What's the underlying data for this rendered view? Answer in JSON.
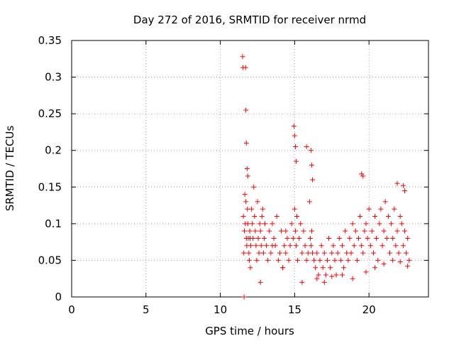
{
  "chart_data": {
    "type": "scatter",
    "title": "Day 272 of 2016, SRMTID for receiver nrmd",
    "xlabel": "GPS time / hours",
    "ylabel": "SRMTID / TECUs",
    "xlim": [
      0,
      24
    ],
    "ylim": [
      0,
      0.35
    ],
    "xticks": [
      0,
      5,
      10,
      15,
      20
    ],
    "xtick_labels": [
      "0",
      "5",
      "10",
      "15",
      "20"
    ],
    "yticks": [
      0,
      0.05,
      0.1,
      0.15,
      0.2,
      0.25,
      0.3,
      0.35
    ],
    "ytick_labels": [
      "0",
      "0.05",
      "0.1",
      "0.15",
      "0.2",
      "0.25",
      "0.3",
      "0.35"
    ],
    "grid": true,
    "marker": "+",
    "color": "#ff0000",
    "series": [
      {
        "x": [
          11.55,
          11.58,
          11.62,
          11.65,
          11.68,
          11.72,
          11.75,
          11.78,
          11.82,
          11.85,
          11.88,
          11.92,
          11.95,
          11.98,
          12.02,
          12.05,
          12.1,
          12.15,
          12.2,
          12.25,
          12.3,
          12.35,
          12.4,
          12.45,
          12.5,
          12.55,
          12.6,
          12.65,
          12.7,
          12.75,
          12.8,
          12.85,
          12.9,
          12.95,
          13.0,
          13.1,
          13.2,
          13.3,
          13.4,
          13.5,
          13.6,
          13.7,
          13.8,
          13.9,
          14.0,
          14.1,
          14.2,
          14.3,
          14.4,
          14.5,
          14.6,
          14.7,
          14.8,
          14.9,
          15.0,
          15.05,
          15.1,
          15.15,
          15.2,
          15.3,
          15.4,
          15.5,
          15.6,
          15.7,
          15.8,
          15.9,
          16.0,
          16.05,
          16.1,
          16.15,
          16.2,
          16.3,
          16.4,
          16.5,
          16.6,
          16.7,
          16.8,
          16.9,
          17.0,
          17.1,
          17.2,
          17.3,
          17.4,
          17.5,
          17.6,
          17.7,
          17.8,
          17.9,
          18.0,
          18.1,
          18.2,
          18.3,
          18.4,
          18.5,
          18.6,
          18.7,
          18.8,
          18.9,
          19.0,
          19.1,
          19.2,
          19.3,
          19.4,
          19.5,
          19.6,
          19.7,
          19.8,
          19.9,
          20.0,
          20.1,
          20.2,
          20.3,
          20.4,
          20.5,
          20.6,
          20.7,
          20.8,
          20.9,
          21.0,
          21.1,
          21.2,
          21.3,
          21.4,
          21.5,
          21.6,
          21.7,
          21.8,
          21.9,
          22.0,
          22.1,
          22.2,
          22.3,
          22.4,
          22.5,
          22.6,
          22.7,
          11.5,
          11.52,
          11.7,
          11.72,
          11.75,
          11.8,
          11.85,
          14.95,
          15.0,
          15.05,
          15.1,
          15.8,
          16.1,
          16.15,
          16.2,
          19.5,
          19.6,
          21.9,
          22.3,
          22.4,
          11.6,
          12.0,
          12.7,
          13.5,
          14.2,
          14.4,
          15.5,
          16.5,
          17.0,
          17.5,
          18.2,
          18.9,
          19.8,
          20.4,
          21.0,
          21.6,
          22.1,
          22.6
        ],
        "y": [
          0.11,
          0.06,
          0.09,
          0.14,
          0.1,
          0.13,
          0.08,
          0.07,
          0.12,
          0.1,
          0.08,
          0.06,
          0.05,
          0.09,
          0.04,
          0.07,
          0.12,
          0.1,
          0.08,
          0.15,
          0.11,
          0.09,
          0.07,
          0.05,
          0.13,
          0.08,
          0.06,
          0.1,
          0.09,
          0.07,
          0.11,
          0.12,
          0.06,
          0.08,
          0.1,
          0.07,
          0.05,
          0.09,
          0.06,
          0.1,
          0.08,
          0.07,
          0.11,
          0.05,
          0.06,
          0.09,
          0.04,
          0.07,
          0.06,
          0.08,
          0.05,
          0.07,
          0.1,
          0.08,
          0.12,
          0.09,
          0.07,
          0.11,
          0.05,
          0.08,
          0.1,
          0.06,
          0.09,
          0.07,
          0.05,
          0.06,
          0.13,
          0.08,
          0.07,
          0.09,
          0.06,
          0.05,
          0.04,
          0.06,
          0.03,
          0.05,
          0.07,
          0.04,
          0.06,
          0.03,
          0.05,
          0.08,
          0.04,
          0.06,
          0.07,
          0.05,
          0.03,
          0.06,
          0.08,
          0.05,
          0.07,
          0.04,
          0.09,
          0.06,
          0.05,
          0.08,
          0.06,
          0.1,
          0.07,
          0.09,
          0.05,
          0.08,
          0.11,
          0.07,
          0.06,
          0.09,
          0.1,
          0.08,
          0.12,
          0.07,
          0.09,
          0.06,
          0.11,
          0.08,
          0.05,
          0.1,
          0.12,
          0.07,
          0.09,
          0.13,
          0.08,
          0.11,
          0.06,
          0.1,
          0.08,
          0.12,
          0.07,
          0.09,
          0.06,
          0.11,
          0.1,
          0.07,
          0.09,
          0.06,
          0.08,
          0.05,
          0.328,
          0.313,
          0.313,
          0.255,
          0.21,
          0.175,
          0.165,
          0.233,
          0.22,
          0.205,
          0.185,
          0.205,
          0.2,
          0.18,
          0.16,
          0.168,
          0.165,
          0.155,
          0.152,
          0.145,
          0.0,
          0.08,
          0.02,
          0.07,
          0.04,
          0.09,
          0.02,
          0.025,
          0.02,
          0.028,
          0.03,
          0.025,
          0.034,
          0.04,
          0.045,
          0.05,
          0.048,
          0.042
        ]
      }
    ]
  }
}
